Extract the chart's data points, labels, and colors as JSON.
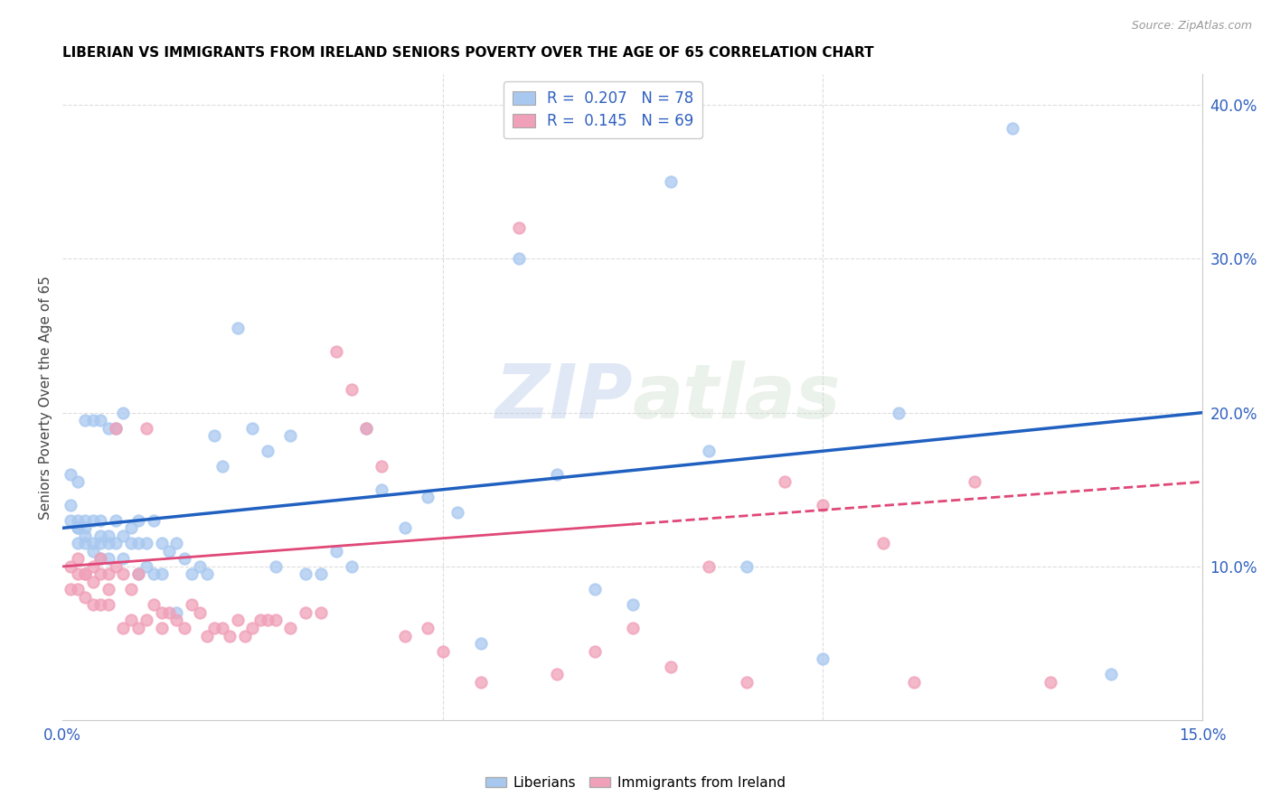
{
  "title": "LIBERIAN VS IMMIGRANTS FROM IRELAND SENIORS POVERTY OVER THE AGE OF 65 CORRELATION CHART",
  "source": "Source: ZipAtlas.com",
  "ylabel": "Seniors Poverty Over the Age of 65",
  "xlim": [
    0.0,
    0.15
  ],
  "ylim": [
    0.0,
    0.42
  ],
  "color_liberian": "#a8c8f0",
  "color_ireland": "#f0a0b8",
  "line_color_liberian": "#2060c0",
  "line_color_ireland": "#e04878",
  "R_liberian": 0.207,
  "N_liberian": 78,
  "R_ireland": 0.145,
  "N_ireland": 69,
  "watermark_zip": "ZIP",
  "watermark_atlas": "atlas",
  "liberian_x": [
    0.001,
    0.001,
    0.001,
    0.002,
    0.002,
    0.002,
    0.002,
    0.002,
    0.003,
    0.003,
    0.003,
    0.003,
    0.003,
    0.004,
    0.004,
    0.004,
    0.004,
    0.005,
    0.005,
    0.005,
    0.005,
    0.005,
    0.006,
    0.006,
    0.006,
    0.006,
    0.007,
    0.007,
    0.007,
    0.008,
    0.008,
    0.008,
    0.009,
    0.009,
    0.01,
    0.01,
    0.01,
    0.011,
    0.011,
    0.012,
    0.012,
    0.013,
    0.013,
    0.014,
    0.015,
    0.015,
    0.016,
    0.017,
    0.018,
    0.019,
    0.02,
    0.021,
    0.023,
    0.025,
    0.027,
    0.028,
    0.03,
    0.032,
    0.034,
    0.036,
    0.038,
    0.04,
    0.042,
    0.045,
    0.048,
    0.052,
    0.055,
    0.06,
    0.065,
    0.07,
    0.075,
    0.08,
    0.085,
    0.09,
    0.1,
    0.11,
    0.125,
    0.138
  ],
  "liberian_y": [
    0.13,
    0.14,
    0.16,
    0.125,
    0.13,
    0.115,
    0.125,
    0.155,
    0.12,
    0.13,
    0.115,
    0.125,
    0.195,
    0.115,
    0.11,
    0.13,
    0.195,
    0.12,
    0.115,
    0.13,
    0.105,
    0.195,
    0.115,
    0.12,
    0.105,
    0.19,
    0.13,
    0.115,
    0.19,
    0.12,
    0.105,
    0.2,
    0.125,
    0.115,
    0.115,
    0.095,
    0.13,
    0.1,
    0.115,
    0.095,
    0.13,
    0.095,
    0.115,
    0.11,
    0.115,
    0.07,
    0.105,
    0.095,
    0.1,
    0.095,
    0.185,
    0.165,
    0.255,
    0.19,
    0.175,
    0.1,
    0.185,
    0.095,
    0.095,
    0.11,
    0.1,
    0.19,
    0.15,
    0.125,
    0.145,
    0.135,
    0.05,
    0.3,
    0.16,
    0.085,
    0.075,
    0.35,
    0.175,
    0.1,
    0.04,
    0.2,
    0.385,
    0.03
  ],
  "ireland_x": [
    0.001,
    0.001,
    0.002,
    0.002,
    0.002,
    0.003,
    0.003,
    0.003,
    0.004,
    0.004,
    0.004,
    0.005,
    0.005,
    0.005,
    0.006,
    0.006,
    0.006,
    0.007,
    0.007,
    0.008,
    0.008,
    0.009,
    0.009,
    0.01,
    0.01,
    0.011,
    0.011,
    0.012,
    0.013,
    0.013,
    0.014,
    0.015,
    0.016,
    0.017,
    0.018,
    0.019,
    0.02,
    0.021,
    0.022,
    0.023,
    0.024,
    0.025,
    0.026,
    0.027,
    0.028,
    0.03,
    0.032,
    0.034,
    0.036,
    0.038,
    0.04,
    0.042,
    0.045,
    0.048,
    0.05,
    0.055,
    0.06,
    0.065,
    0.07,
    0.075,
    0.08,
    0.085,
    0.09,
    0.095,
    0.1,
    0.108,
    0.112,
    0.12,
    0.13
  ],
  "ireland_y": [
    0.1,
    0.085,
    0.095,
    0.085,
    0.105,
    0.095,
    0.08,
    0.095,
    0.09,
    0.075,
    0.1,
    0.095,
    0.075,
    0.105,
    0.085,
    0.075,
    0.095,
    0.1,
    0.19,
    0.095,
    0.06,
    0.085,
    0.065,
    0.095,
    0.06,
    0.19,
    0.065,
    0.075,
    0.07,
    0.06,
    0.07,
    0.065,
    0.06,
    0.075,
    0.07,
    0.055,
    0.06,
    0.06,
    0.055,
    0.065,
    0.055,
    0.06,
    0.065,
    0.065,
    0.065,
    0.06,
    0.07,
    0.07,
    0.24,
    0.215,
    0.19,
    0.165,
    0.055,
    0.06,
    0.045,
    0.025,
    0.32,
    0.03,
    0.045,
    0.06,
    0.035,
    0.1,
    0.025,
    0.155,
    0.14,
    0.115,
    0.025,
    0.155,
    0.025
  ]
}
